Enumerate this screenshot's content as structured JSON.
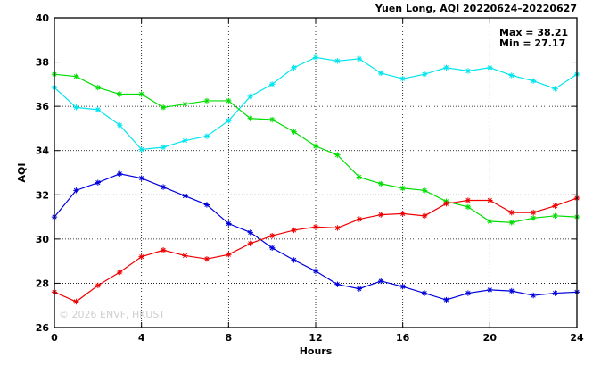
{
  "chart_data": {
    "type": "line",
    "title": "Yuen Long, AQI 20220624–20220627",
    "xlabel": "Hours",
    "ylabel": "AQI",
    "xlim": [
      0,
      24
    ],
    "ylim": [
      26,
      40
    ],
    "xticks": [
      0,
      4,
      8,
      12,
      16,
      20,
      24
    ],
    "yticks": [
      26,
      28,
      30,
      32,
      34,
      36,
      38,
      40
    ],
    "grid": true,
    "grid_style": "dotted",
    "marker": "asterisk",
    "stats": {
      "max_label": "Max = 38.21",
      "min_label": "Min = 27.17"
    },
    "watermark": "© 2026  ENVF, HKUST",
    "x": [
      0,
      1,
      2,
      3,
      4,
      5,
      6,
      7,
      8,
      9,
      10,
      11,
      12,
      13,
      14,
      15,
      16,
      17,
      18,
      19,
      20,
      21,
      22,
      23,
      24
    ],
    "series": [
      {
        "color": "#00e5ee",
        "values": [
          36.85,
          35.95,
          35.85,
          35.15,
          34.05,
          34.15,
          34.45,
          34.65,
          35.35,
          36.45,
          37.0,
          37.75,
          38.21,
          38.05,
          38.15,
          37.5,
          37.25,
          37.45,
          37.75,
          37.6,
          37.75,
          37.4,
          37.15,
          36.8,
          37.45
        ]
      },
      {
        "color": "#00dd00",
        "values": [
          37.45,
          37.35,
          36.85,
          36.55,
          36.55,
          35.95,
          36.1,
          36.25,
          36.25,
          35.45,
          35.4,
          34.85,
          34.2,
          33.8,
          32.8,
          32.5,
          32.3,
          32.2,
          31.7,
          31.45,
          30.8,
          30.75,
          30.95,
          31.05,
          31.0
        ]
      },
      {
        "color": "#0000dd",
        "values": [
          31.0,
          32.2,
          32.55,
          32.95,
          32.75,
          32.35,
          31.95,
          31.55,
          30.7,
          30.3,
          29.6,
          29.05,
          28.55,
          27.95,
          27.75,
          28.1,
          27.85,
          27.55,
          27.25,
          27.55,
          27.7,
          27.65,
          27.45,
          27.55,
          27.6
        ]
      },
      {
        "color": "#ee0000",
        "values": [
          27.6,
          27.17,
          27.9,
          28.5,
          29.2,
          29.5,
          29.25,
          29.1,
          29.3,
          29.8,
          30.15,
          30.4,
          30.55,
          30.5,
          30.9,
          31.1,
          31.15,
          31.05,
          31.6,
          31.75,
          31.75,
          31.2,
          31.2,
          31.5,
          31.85
        ]
      }
    ]
  }
}
